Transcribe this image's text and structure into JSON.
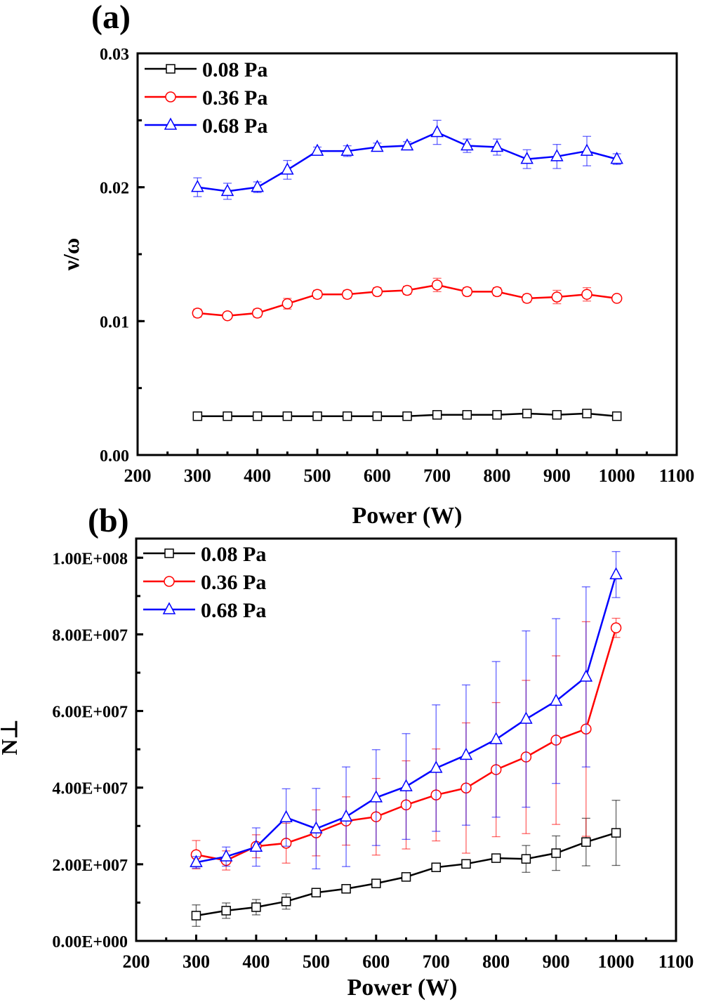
{
  "chart_data": [
    {
      "type": "line",
      "panel_label": "(a)",
      "xlabel": "Power (W)",
      "ylabel": "ν/ω",
      "xlim": [
        200,
        1100
      ],
      "ylim": [
        0,
        0.03
      ],
      "xticks": [
        200,
        300,
        400,
        500,
        600,
        700,
        800,
        900,
        1000,
        1100
      ],
      "xtick_labels": [
        "200",
        "300",
        "400",
        "500",
        "600",
        "700",
        "800",
        "900",
        "1000",
        "1100"
      ],
      "yticks": [
        0,
        0.01,
        0.02,
        0.03
      ],
      "ytick_labels": [
        "0.00",
        "0.01",
        "0.02",
        "0.03"
      ],
      "yminor_step": 0.005,
      "legend_position": "top-left",
      "grid": false,
      "x": [
        300,
        350,
        400,
        450,
        500,
        550,
        600,
        650,
        700,
        750,
        800,
        850,
        900,
        950,
        1000
      ],
      "series": [
        {
          "name": "0.08 Pa",
          "color": "#000000",
          "marker": "square",
          "values": [
            0.0029,
            0.0029,
            0.0029,
            0.0029,
            0.0029,
            0.0029,
            0.0029,
            0.0029,
            0.003,
            0.003,
            0.003,
            0.0031,
            0.003,
            0.0031,
            0.0029
          ],
          "errors": [
            0.0002,
            0.0002,
            0.0002,
            0.0002,
            0.0002,
            0.0002,
            0.0002,
            0.0002,
            0.0002,
            0.0002,
            0.0002,
            0.0002,
            0.0002,
            0.0002,
            0.0002
          ]
        },
        {
          "name": "0.36 Pa",
          "color": "#ff0000",
          "marker": "circle",
          "values": [
            0.0106,
            0.0104,
            0.0106,
            0.0113,
            0.012,
            0.012,
            0.0122,
            0.0123,
            0.0127,
            0.0122,
            0.0122,
            0.0117,
            0.0118,
            0.012,
            0.0117
          ],
          "errors": [
            0.0003,
            0.0002,
            0.0003,
            0.0004,
            0.0003,
            0.0003,
            0.0003,
            0.0003,
            0.0005,
            0.0003,
            0.0003,
            0.0003,
            0.0005,
            0.0005,
            0.0002
          ]
        },
        {
          "name": "0.68 Pa",
          "color": "#0000ff",
          "marker": "triangle",
          "values": [
            0.02,
            0.0197,
            0.02,
            0.0213,
            0.0227,
            0.0227,
            0.023,
            0.0231,
            0.0241,
            0.0231,
            0.023,
            0.0221,
            0.0223,
            0.0227,
            0.0221
          ],
          "errors": [
            0.0007,
            0.0006,
            0.0004,
            0.0007,
            0.0003,
            0.0004,
            0.0003,
            0.0003,
            0.0009,
            0.0005,
            0.0006,
            0.0007,
            0.0009,
            0.0011,
            0.0004
          ]
        }
      ]
    },
    {
      "type": "line",
      "panel_label": "(b)",
      "xlabel": "Power (W)",
      "ylabel": "N⊥",
      "xlim": [
        200,
        1100
      ],
      "ylim": [
        0,
        105000000
      ],
      "xticks": [
        200,
        300,
        400,
        500,
        600,
        700,
        800,
        900,
        1000,
        1100
      ],
      "xtick_labels": [
        "200",
        "300",
        "400",
        "500",
        "600",
        "700",
        "800",
        "900",
        "1000",
        "1100"
      ],
      "yticks": [
        0,
        20000000,
        40000000,
        60000000,
        80000000,
        100000000
      ],
      "ytick_labels": [
        "0.00E+000",
        "2.00E+007",
        "4.00E+007",
        "6.00E+007",
        "8.00E+007",
        "1.00E+008"
      ],
      "yminor_step": 10000000,
      "legend_position": "top-left",
      "grid": false,
      "x": [
        300,
        350,
        400,
        450,
        500,
        550,
        600,
        650,
        700,
        750,
        800,
        850,
        900,
        950,
        1000
      ],
      "series": [
        {
          "name": "0.08 Pa",
          "color": "#000000",
          "marker": "square",
          "values": [
            6600000,
            7900000,
            8800000,
            10300000,
            12600000,
            13600000,
            15000000,
            16700000,
            19200000,
            20100000,
            21600000,
            21400000,
            22900000,
            25800000,
            28200000
          ],
          "errors": [
            2800000,
            2000000,
            2000000,
            2000000,
            1000000,
            800000,
            1000000,
            800000,
            1000000,
            1000000,
            1000000,
            3500000,
            4500000,
            6200000,
            8500000
          ]
        },
        {
          "name": "0.36 Pa",
          "color": "#ff0000",
          "marker": "circle",
          "values": [
            22500000,
            21000000,
            24700000,
            25500000,
            28200000,
            31300000,
            32400000,
            35500000,
            38100000,
            39900000,
            44700000,
            48000000,
            52400000,
            55300000,
            81700000
          ],
          "errors": [
            3700000,
            2500000,
            3000000,
            5200000,
            6000000,
            6300000,
            10000000,
            11500000,
            12000000,
            17000000,
            17500000,
            20000000,
            22000000,
            28000000,
            2500000
          ]
        },
        {
          "name": "0.68 Pa",
          "color": "#0000ff",
          "marker": "triangle",
          "values": [
            20500000,
            22000000,
            24500000,
            32200000,
            29300000,
            32400000,
            37400000,
            40300000,
            45100000,
            48500000,
            52600000,
            57900000,
            62600000,
            68900000,
            95600000
          ],
          "errors": [
            1500000,
            2500000,
            5000000,
            7500000,
            10500000,
            13000000,
            12500000,
            13800000,
            16500000,
            18300000,
            20300000,
            23000000,
            21500000,
            23500000,
            6000000
          ]
        }
      ]
    }
  ]
}
